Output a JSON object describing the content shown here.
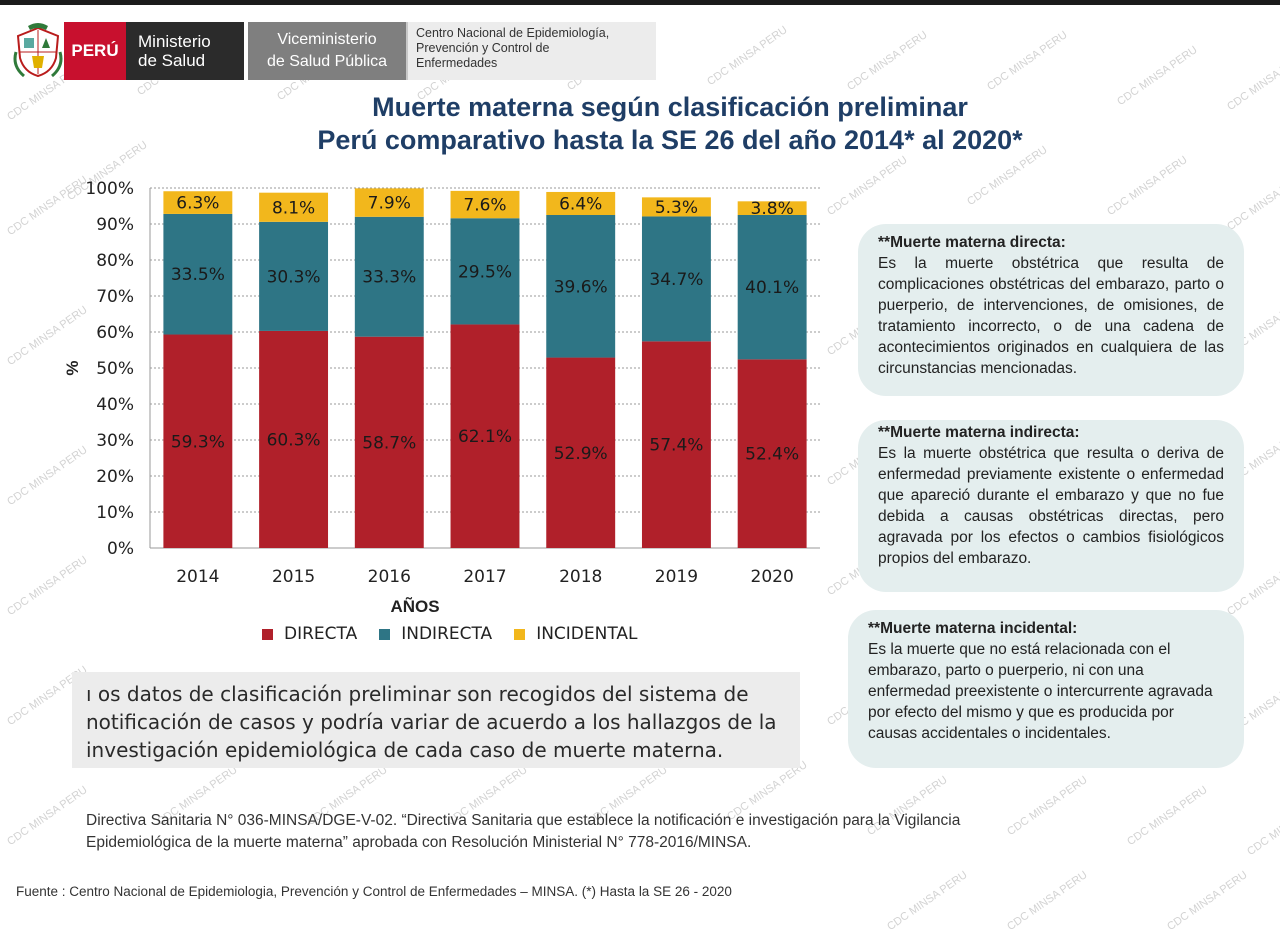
{
  "header": {
    "peru": "PERÚ",
    "ministerio": [
      "Ministerio",
      "de Salud"
    ],
    "viceministerio": [
      "Viceministerio",
      "de Salud Pública"
    ],
    "centro": [
      "Centro Nacional de Epidemiología,",
      "Prevención y Control de",
      "Enfermedades"
    ]
  },
  "watermark": "CDC MINSA PERU",
  "chart_data": {
    "type": "bar",
    "stacked": true,
    "title": [
      "Muerte materna según clasificación preliminar",
      "Perú  comparativo hasta la SE 26 del año 2014* al 2020*"
    ],
    "xlabel": "AÑOS",
    "ylabel": "%",
    "ylim": [
      0,
      100
    ],
    "yticks": [
      "0%",
      "10%",
      "20%",
      "30%",
      "40%",
      "50%",
      "60%",
      "70%",
      "80%",
      "90%",
      "100%"
    ],
    "categories": [
      "2014",
      "2015",
      "2016",
      "2017",
      "2018",
      "2019",
      "2020"
    ],
    "grid": true,
    "legend_position": "bottom",
    "series": [
      {
        "name": "DIRECTA",
        "color": "#b0202a",
        "values": [
          59.3,
          60.3,
          58.7,
          62.1,
          52.9,
          57.4,
          52.4
        ],
        "labels": [
          "59.3%",
          "60.3%",
          "58.7%",
          "62.1%",
          "52.9%",
          "57.4%",
          "52.4%"
        ]
      },
      {
        "name": "INDIRECTA",
        "color": "#2e7585",
        "values": [
          33.5,
          30.3,
          33.3,
          29.5,
          39.6,
          34.7,
          40.1
        ],
        "labels": [
          "33.5%",
          "30.3%",
          "33.3%",
          "29.5%",
          "39.6%",
          "34.7%",
          "40.1%"
        ]
      },
      {
        "name": "INCIDENTAL",
        "color": "#f2b71c",
        "values": [
          6.3,
          8.1,
          7.9,
          7.6,
          6.4,
          5.3,
          3.8
        ],
        "labels": [
          "6.3%",
          "8.1%",
          "7.9%",
          "7.6%",
          "6.4%",
          "5.3%",
          "3.8%"
        ]
      }
    ]
  },
  "note": "ı os datos de clasificación preliminar son recogidos del sistema de notificación de casos y podría variar de acuerdo a los hallazgos de la investigación epidemiológica de cada caso de muerte materna.",
  "definitions": [
    {
      "title": "**Muerte materna directa:",
      "body": "Es la muerte obstétrica que resulta de complicaciones obstétricas del embarazo, parto o puerperio, de intervenciones, de omisiones, de tratamiento incorrecto, o de una cadena de acontecimientos originados en cualquiera de las circunstancias mencionadas."
    },
    {
      "title": "**Muerte materna indirecta:",
      "body": "Es la muerte obstétrica que resulta o deriva de enfermedad previamente existente o enfermedad que apareció durante el embarazo y que no fue debida a causas obstétricas directas, pero agravada por los efectos o cambios fisiológicos propios del embarazo."
    },
    {
      "title": "**Muerte materna incidental:",
      "body": "Es la muerte que no está relacionada con el embarazo, parto o puerperio, ni con una enfermedad preexistente o intercurrente agravada por efecto del mismo y que es producida por causas accidentales o incidentales."
    }
  ],
  "directiva": "Directiva Sanitaria N° 036-MINSA/DGE-V-02. “Directiva Sanitaria que establece la notificación e investigación para la Vigilancia Epidemiológica de la muerte materna” aprobada con  Resolución Ministerial N° 778-2016/MINSA.",
  "fuente": "Fuente : Centro Nacional de Epidemiologia, Prevención y Control de Enfermedades – MINSA.  (*) Hasta la SE 26 - 2020"
}
